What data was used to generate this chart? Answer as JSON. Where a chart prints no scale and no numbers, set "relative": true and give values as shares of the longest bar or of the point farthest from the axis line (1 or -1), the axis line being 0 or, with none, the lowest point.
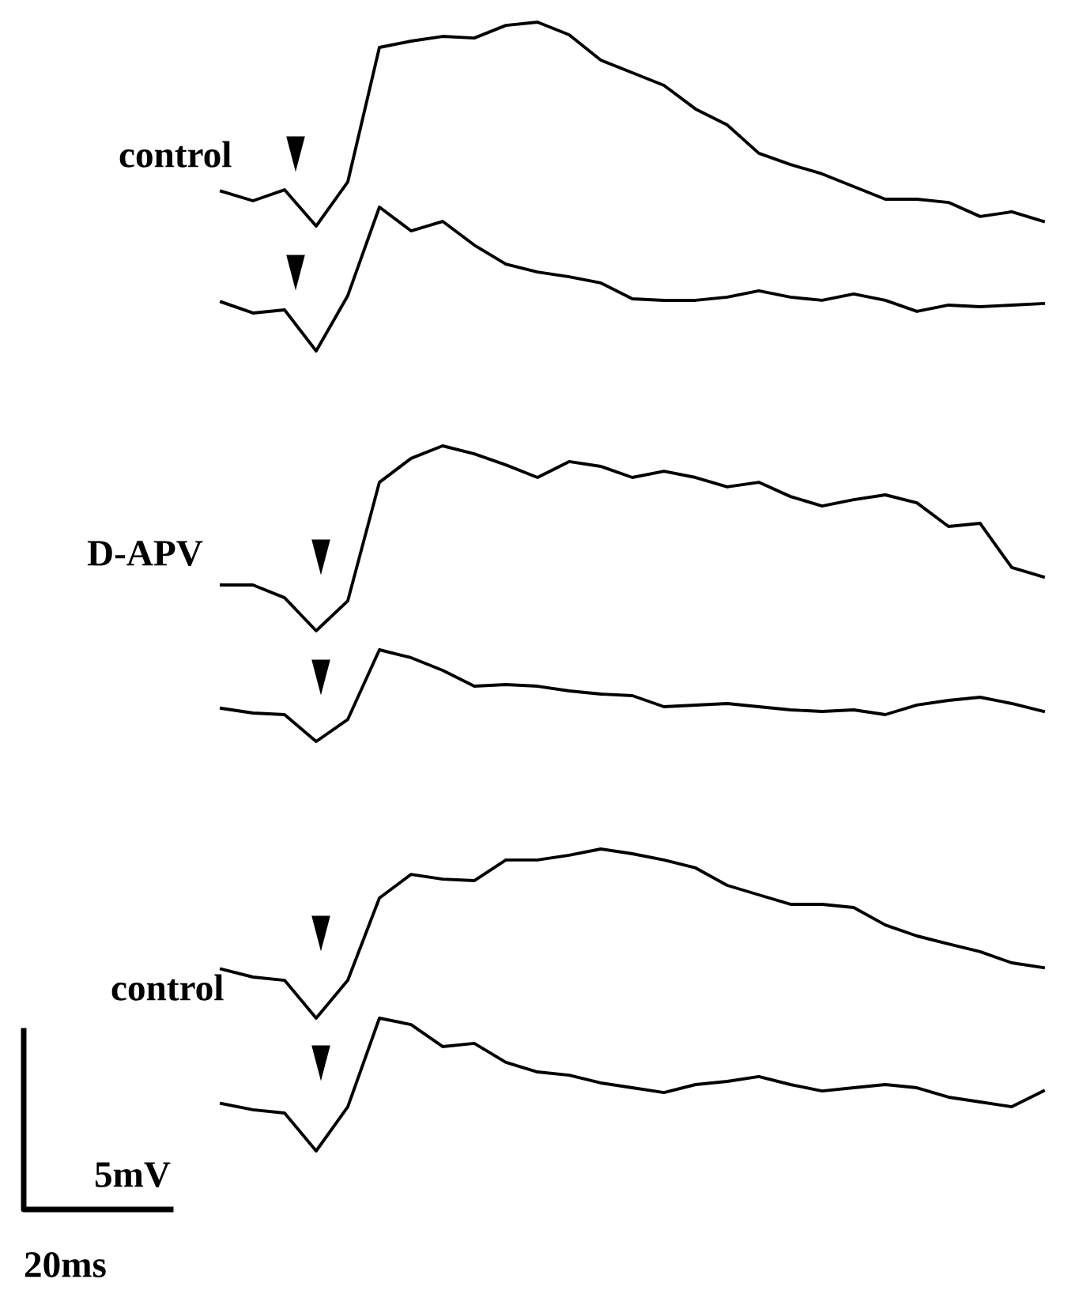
{
  "chart_data": [
    {
      "type": "line",
      "relative": true,
      "categories": [
        null,
        null,
        null,
        null,
        null,
        null,
        null,
        null,
        null,
        null,
        null,
        null,
        null,
        null,
        null,
        null,
        null,
        null,
        null,
        null,
        null,
        null,
        null,
        null,
        null,
        null,
        null
      ],
      "series": [
        {
          "color": "#000000",
          "values": [
            0.171,
            0.124,
            0.178,
            0.0,
            0.217,
            0.876,
            0.907,
            0.93,
            0.922,
            0.984,
            1.0,
            0.938,
            0.814,
            0.752,
            0.69,
            0.574,
            0.496,
            0.357,
            0.302,
            0.256,
            0.194,
            0.132,
            0.132,
            0.116,
            0.047,
            0.07,
            0.023
          ]
        }
      ],
      "annotations": [
        "control"
      ]
    },
    {
      "type": "line",
      "relative": true,
      "categories": [
        null,
        null,
        null,
        null,
        null,
        null,
        null,
        null,
        null,
        null,
        null,
        null,
        null,
        null,
        null,
        null,
        null,
        null,
        null,
        null,
        null,
        null,
        null,
        null,
        null,
        null,
        null
      ],
      "series": [
        {
          "color": "#000000",
          "values": [
            0.341,
            0.264,
            0.286,
            0.0,
            0.385,
            1.0,
            0.835,
            0.901,
            0.736,
            0.604,
            0.549,
            0.516,
            0.473,
            0.363,
            0.352,
            0.352,
            0.374,
            0.418,
            0.374,
            0.352,
            0.396,
            0.352,
            0.275,
            0.319,
            0.308,
            0.319,
            0.33
          ]
        }
      ]
    },
    {
      "type": "line",
      "relative": true,
      "categories": [
        null,
        null,
        null,
        null,
        null,
        null,
        null,
        null,
        null,
        null,
        null,
        null,
        null,
        null,
        null,
        null,
        null,
        null,
        null,
        null,
        null,
        null,
        null,
        null,
        null,
        null,
        null
      ],
      "series": [
        {
          "color": "#000000",
          "values": [
            0.248,
            0.248,
            0.179,
            0.0,
            0.162,
            0.803,
            0.932,
            1.0,
            0.957,
            0.897,
            0.829,
            0.915,
            0.889,
            0.829,
            0.863,
            0.829,
            0.778,
            0.803,
            0.726,
            0.675,
            0.709,
            0.735,
            0.692,
            0.564,
            0.581,
            0.342,
            0.291
          ]
        }
      ],
      "annotations": [
        "D-APV"
      ]
    },
    {
      "type": "line",
      "relative": true,
      "categories": [
        null,
        null,
        null,
        null,
        null,
        null,
        null,
        null,
        null,
        null,
        null,
        null,
        null,
        null,
        null,
        null,
        null,
        null,
        null,
        null,
        null,
        null,
        null,
        null,
        null,
        null,
        null
      ],
      "series": [
        {
          "color": "#000000",
          "values": [
            0.362,
            0.31,
            0.293,
            0.0,
            0.241,
            1.0,
            0.914,
            0.776,
            0.603,
            0.621,
            0.603,
            0.552,
            0.517,
            0.5,
            0.379,
            0.397,
            0.414,
            0.379,
            0.345,
            0.328,
            0.345,
            0.293,
            0.397,
            0.448,
            0.483,
            0.414,
            0.328
          ]
        }
      ]
    },
    {
      "type": "line",
      "relative": true,
      "categories": [
        null,
        null,
        null,
        null,
        null,
        null,
        null,
        null,
        null,
        null,
        null,
        null,
        null,
        null,
        null,
        null,
        null,
        null,
        null,
        null,
        null,
        null,
        null,
        null,
        null,
        null,
        null
      ],
      "series": [
        {
          "color": "#000000",
          "values": [
            0.29,
            0.243,
            0.224,
            0.0,
            0.224,
            0.71,
            0.85,
            0.822,
            0.813,
            0.935,
            0.935,
            0.963,
            1.0,
            0.972,
            0.935,
            0.888,
            0.785,
            0.729,
            0.673,
            0.673,
            0.654,
            0.551,
            0.486,
            0.439,
            0.393,
            0.327,
            0.299
          ]
        }
      ],
      "annotations": [
        "control"
      ]
    },
    {
      "type": "line",
      "relative": true,
      "categories": [
        null,
        null,
        null,
        null,
        null,
        null,
        null,
        null,
        null,
        null,
        null,
        null,
        null,
        null,
        null,
        null,
        null,
        null,
        null,
        null,
        null,
        null,
        null,
        null,
        null,
        null,
        null
      ],
      "series": [
        {
          "color": "#000000",
          "values": [
            0.357,
            0.31,
            0.286,
            0.0,
            0.333,
            1.0,
            0.952,
            0.786,
            0.81,
            0.667,
            0.595,
            0.571,
            0.512,
            0.476,
            0.44,
            0.5,
            0.524,
            0.56,
            0.5,
            0.452,
            0.476,
            0.5,
            0.476,
            0.405,
            0.369,
            0.333,
            0.452
          ]
        }
      ],
      "annotations": [
        "5mV",
        "20ms"
      ]
    }
  ]
}
